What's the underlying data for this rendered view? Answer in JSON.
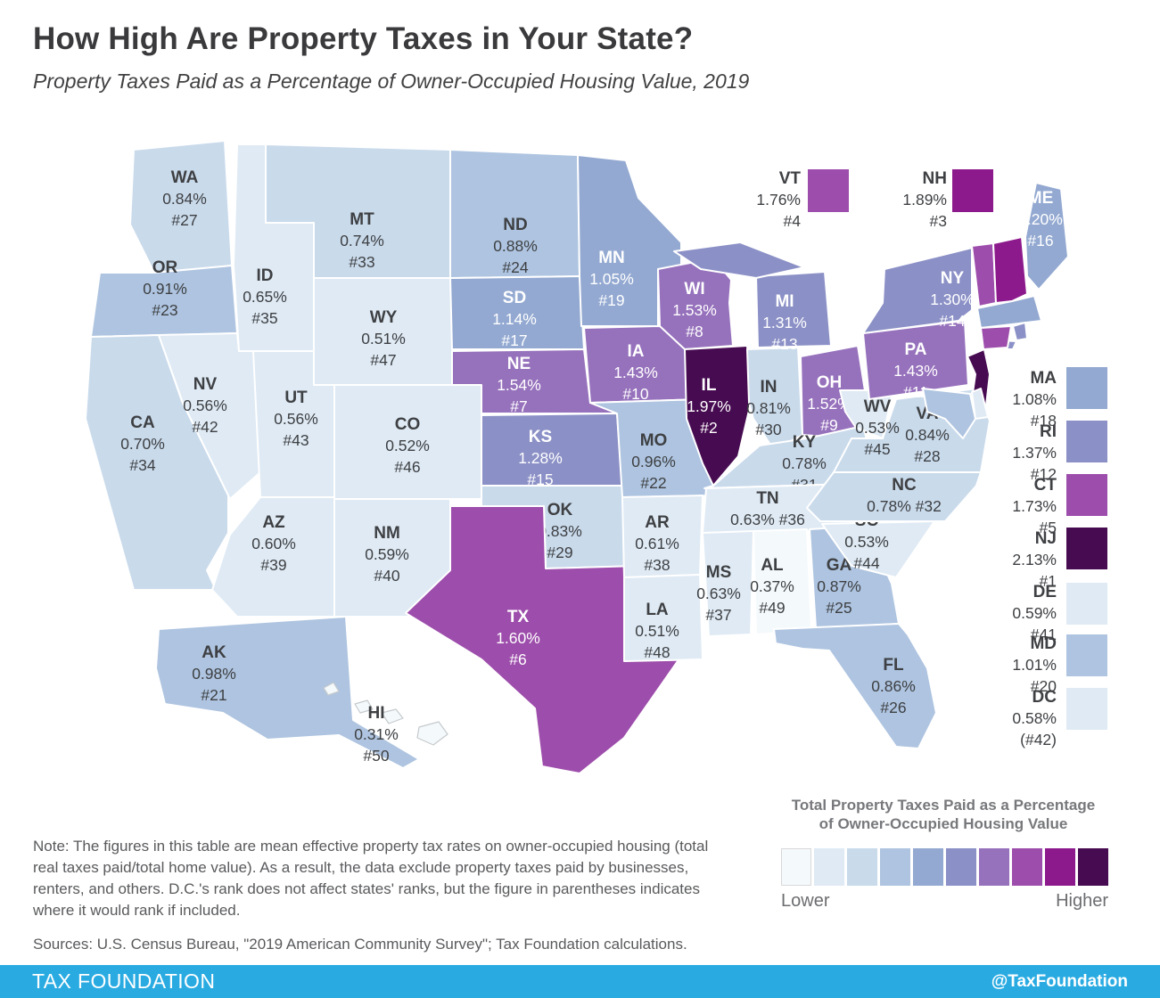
{
  "header": {
    "title": "How High Are Property Taxes in Your State?",
    "subtitle": "Property Taxes Paid as a Percentage of Owner-Occupied Housing Value, 2019"
  },
  "map": {
    "stroke": "#ffffff",
    "island_outline": "#c6cacd",
    "states": [
      {
        "abbr": "WA",
        "value": 0.84,
        "rate": "0.84%",
        "rank": "#27",
        "color": "#c9daeb",
        "text": "dark"
      },
      {
        "abbr": "OR",
        "value": 0.91,
        "rate": "0.91%",
        "rank": "#23",
        "color": "#aec4e0",
        "text": "dark"
      },
      {
        "abbr": "CA",
        "value": 0.7,
        "rate": "0.70%",
        "rank": "#34",
        "color": "#c9daeb",
        "text": "dark"
      },
      {
        "abbr": "NV",
        "value": 0.56,
        "rate": "0.56%",
        "rank": "#42",
        "color": "#dfeaf4",
        "text": "dark"
      },
      {
        "abbr": "ID",
        "value": 0.65,
        "rate": "0.65%",
        "rank": "#35",
        "color": "#dfeaf4",
        "text": "dark"
      },
      {
        "abbr": "MT",
        "value": 0.74,
        "rate": "0.74%",
        "rank": "#33",
        "color": "#c9daeb",
        "text": "dark"
      },
      {
        "abbr": "WY",
        "value": 0.51,
        "rate": "0.51%",
        "rank": "#47",
        "color": "#dfeaf4",
        "text": "dark"
      },
      {
        "abbr": "UT",
        "value": 0.56,
        "rate": "0.56%",
        "rank": "#43",
        "color": "#dfeaf4",
        "text": "dark"
      },
      {
        "abbr": "CO",
        "value": 0.52,
        "rate": "0.52%",
        "rank": "#46",
        "color": "#dfeaf4",
        "text": "dark"
      },
      {
        "abbr": "AZ",
        "value": 0.6,
        "rate": "0.60%",
        "rank": "#39",
        "color": "#dfeaf4",
        "text": "dark"
      },
      {
        "abbr": "NM",
        "value": 0.59,
        "rate": "0.59%",
        "rank": "#40",
        "color": "#dfeaf4",
        "text": "dark"
      },
      {
        "abbr": "ND",
        "value": 0.88,
        "rate": "0.88%",
        "rank": "#24",
        "color": "#aec4e0",
        "text": "dark"
      },
      {
        "abbr": "SD",
        "value": 1.14,
        "rate": "1.14%",
        "rank": "#17",
        "color": "#93a9d1",
        "text": "light"
      },
      {
        "abbr": "NE",
        "value": 1.54,
        "rate": "1.54%",
        "rank": "#7",
        "color": "#9671bc",
        "text": "light"
      },
      {
        "abbr": "KS",
        "value": 1.28,
        "rate": "1.28%",
        "rank": "#15",
        "color": "#8b90c6",
        "text": "light"
      },
      {
        "abbr": "OK",
        "value": 0.83,
        "rate": "0.83%",
        "rank": "#29",
        "color": "#c9daeb",
        "text": "dark"
      },
      {
        "abbr": "TX",
        "value": 1.6,
        "rate": "1.60%",
        "rank": "#6",
        "color": "#9d4dab",
        "text": "light"
      },
      {
        "abbr": "MN",
        "value": 1.05,
        "rate": "1.05%",
        "rank": "#19",
        "color": "#93a9d1",
        "text": "light"
      },
      {
        "abbr": "IA",
        "value": 1.43,
        "rate": "1.43%",
        "rank": "#10",
        "color": "#9671bc",
        "text": "light"
      },
      {
        "abbr": "MO",
        "value": 0.96,
        "rate": "0.96%",
        "rank": "#22",
        "color": "#aec4e0",
        "text": "dark"
      },
      {
        "abbr": "AR",
        "value": 0.61,
        "rate": "0.61%",
        "rank": "#38",
        "color": "#dfeaf4",
        "text": "dark"
      },
      {
        "abbr": "LA",
        "value": 0.51,
        "rate": "0.51%",
        "rank": "#48",
        "color": "#dfeaf4",
        "text": "dark"
      },
      {
        "abbr": "WI",
        "value": 1.53,
        "rate": "1.53%",
        "rank": "#8",
        "color": "#9671bc",
        "text": "light"
      },
      {
        "abbr": "IL",
        "value": 1.97,
        "rate": "1.97%",
        "rank": "#2",
        "color": "#470b51",
        "text": "light"
      },
      {
        "abbr": "IN",
        "value": 0.81,
        "rate": "0.81%",
        "rank": "#30",
        "color": "#c9daeb",
        "text": "dark"
      },
      {
        "abbr": "MI",
        "value": 1.31,
        "rate": "1.31%",
        "rank": "#13",
        "color": "#8b90c6",
        "text": "light"
      },
      {
        "abbr": "OH",
        "value": 1.52,
        "rate": "1.52%",
        "rank": "#9",
        "color": "#9671bc",
        "text": "light"
      },
      {
        "abbr": "KY",
        "value": 0.78,
        "rate": "0.78%",
        "rank": "#31",
        "color": "#c9daeb",
        "text": "dark"
      },
      {
        "abbr": "TN",
        "value": 0.63,
        "rate": "0.63%",
        "rank": "#36",
        "color": "#dfeaf4",
        "text": "dark"
      },
      {
        "abbr": "MS",
        "value": 0.63,
        "rate": "0.63%",
        "rank": "#37",
        "color": "#dfeaf4",
        "text": "dark"
      },
      {
        "abbr": "AL",
        "value": 0.37,
        "rate": "0.37%",
        "rank": "#49",
        "color": "#f4f9fc",
        "text": "dark"
      },
      {
        "abbr": "GA",
        "value": 0.87,
        "rate": "0.87%",
        "rank": "#25",
        "color": "#aec4e0",
        "text": "dark"
      },
      {
        "abbr": "FL",
        "value": 0.86,
        "rate": "0.86%",
        "rank": "#26",
        "color": "#aec4e0",
        "text": "dark"
      },
      {
        "abbr": "SC",
        "value": 0.53,
        "rate": "0.53%",
        "rank": "#44",
        "color": "#dfeaf4",
        "text": "dark"
      },
      {
        "abbr": "NC",
        "value": 0.78,
        "rate": "0.78%",
        "rank": "#32",
        "color": "#c9daeb",
        "text": "dark"
      },
      {
        "abbr": "VA",
        "value": 0.84,
        "rate": "0.84%",
        "rank": "#28",
        "color": "#c9daeb",
        "text": "dark"
      },
      {
        "abbr": "WV",
        "value": 0.53,
        "rate": "0.53%",
        "rank": "#45",
        "color": "#dfeaf4",
        "text": "dark"
      },
      {
        "abbr": "PA",
        "value": 1.43,
        "rate": "1.43%",
        "rank": "#11",
        "color": "#9671bc",
        "text": "light"
      },
      {
        "abbr": "NY",
        "value": 1.3,
        "rate": "1.30%",
        "rank": "#14",
        "color": "#8b90c6",
        "text": "light"
      },
      {
        "abbr": "VT",
        "value": 1.76,
        "rate": "1.76%",
        "rank": "#4",
        "color": "#9d4dab",
        "text": "dark"
      },
      {
        "abbr": "NH",
        "value": 1.89,
        "rate": "1.89%",
        "rank": "#3",
        "color": "#8d1a8c",
        "text": "dark"
      },
      {
        "abbr": "ME",
        "value": 1.2,
        "rate": "1.20%",
        "rank": "#16",
        "color": "#93a9d1",
        "text": "light"
      },
      {
        "abbr": "MA",
        "value": 1.08,
        "rate": "1.08%",
        "rank": "#18",
        "color": "#93a9d1",
        "text": "dark"
      },
      {
        "abbr": "RI",
        "value": 1.37,
        "rate": "1.37%",
        "rank": "#12",
        "color": "#8b90c6",
        "text": "dark"
      },
      {
        "abbr": "CT",
        "value": 1.73,
        "rate": "1.73%",
        "rank": "#5",
        "color": "#9d4dab",
        "text": "dark"
      },
      {
        "abbr": "NJ",
        "value": 2.13,
        "rate": "2.13%",
        "rank": "#1",
        "color": "#470b51",
        "text": "dark"
      },
      {
        "abbr": "DE",
        "value": 0.59,
        "rate": "0.59%",
        "rank": "#41",
        "color": "#dfeaf4",
        "text": "dark"
      },
      {
        "abbr": "MD",
        "value": 1.01,
        "rate": "1.01%",
        "rank": "#20",
        "color": "#aec4e0",
        "text": "dark"
      },
      {
        "abbr": "DC",
        "value": 0.58,
        "rate": "0.58%",
        "rank": "(#42)",
        "color": "#dfeaf4",
        "text": "dark"
      },
      {
        "abbr": "AK",
        "value": 0.98,
        "rate": "0.98%",
        "rank": "#21",
        "color": "#aec4e0",
        "text": "dark"
      },
      {
        "abbr": "HI",
        "value": 0.31,
        "rate": "0.31%",
        "rank": "#50",
        "color": "#f4f9fc",
        "text": "dark"
      }
    ]
  },
  "legend": {
    "title_line1": "Total Property Taxes Paid as a Percentage",
    "title_line2": "of Owner-Occupied Housing Value",
    "lower": "Lower",
    "higher": "Higher",
    "colors": [
      "#f4f9fc",
      "#dfeaf4",
      "#c9daeb",
      "#aec4e0",
      "#93a9d1",
      "#8b90c6",
      "#9671bc",
      "#9d4dab",
      "#8d1a8c",
      "#470b51"
    ]
  },
  "notes": {
    "note": "Note: The figures in this table are mean effective property tax rates on owner-occupied housing (total real taxes paid/total home value). As a result, the data exclude property taxes paid by businesses, renters, and others. D.C.'s rank does not affect states' ranks, but the figure in parentheses indicates where it would rank if included.",
    "sources": "Sources: U.S. Census Bureau, \"2019 American Community Survey\"; Tax Foundation calculations."
  },
  "footer": {
    "brand": "TAX FOUNDATION",
    "handle": "@TaxFoundation",
    "bg": "#29abe2"
  }
}
